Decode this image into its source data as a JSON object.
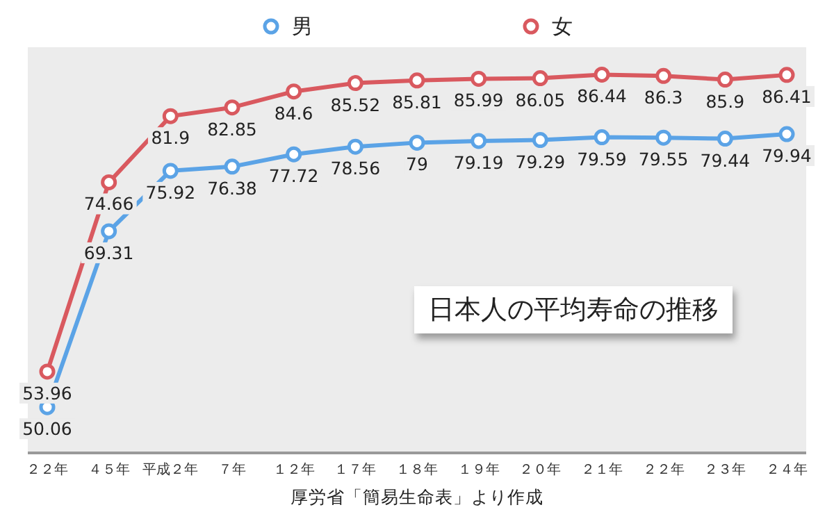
{
  "chart_data": {
    "type": "line",
    "title": "日本人の平均寿命の推移",
    "annotations": [
      "厚労省「簡易生命表」より作成"
    ],
    "categories": [
      "２２年",
      "４５年",
      "平成２年",
      "７年",
      "１２年",
      "１７年",
      "１８年",
      "１９年",
      "２０年",
      "２１年",
      "２２年",
      "２３年",
      "２４年"
    ],
    "series": [
      {
        "name": "男",
        "color": "#5ba3e6",
        "values": [
          50.06,
          69.31,
          75.92,
          76.38,
          77.72,
          78.56,
          79,
          79.19,
          79.29,
          79.59,
          79.55,
          79.44,
          79.94
        ]
      },
      {
        "name": "女",
        "color": "#d9595f",
        "values": [
          53.96,
          74.66,
          81.9,
          82.85,
          84.6,
          85.52,
          85.81,
          85.99,
          86.05,
          86.44,
          86.3,
          85.9,
          86.41
        ]
      }
    ],
    "tick_labels": "x",
    "legend": "top",
    "marker": "circle",
    "line_style": "solid",
    "data_labels": true
  }
}
